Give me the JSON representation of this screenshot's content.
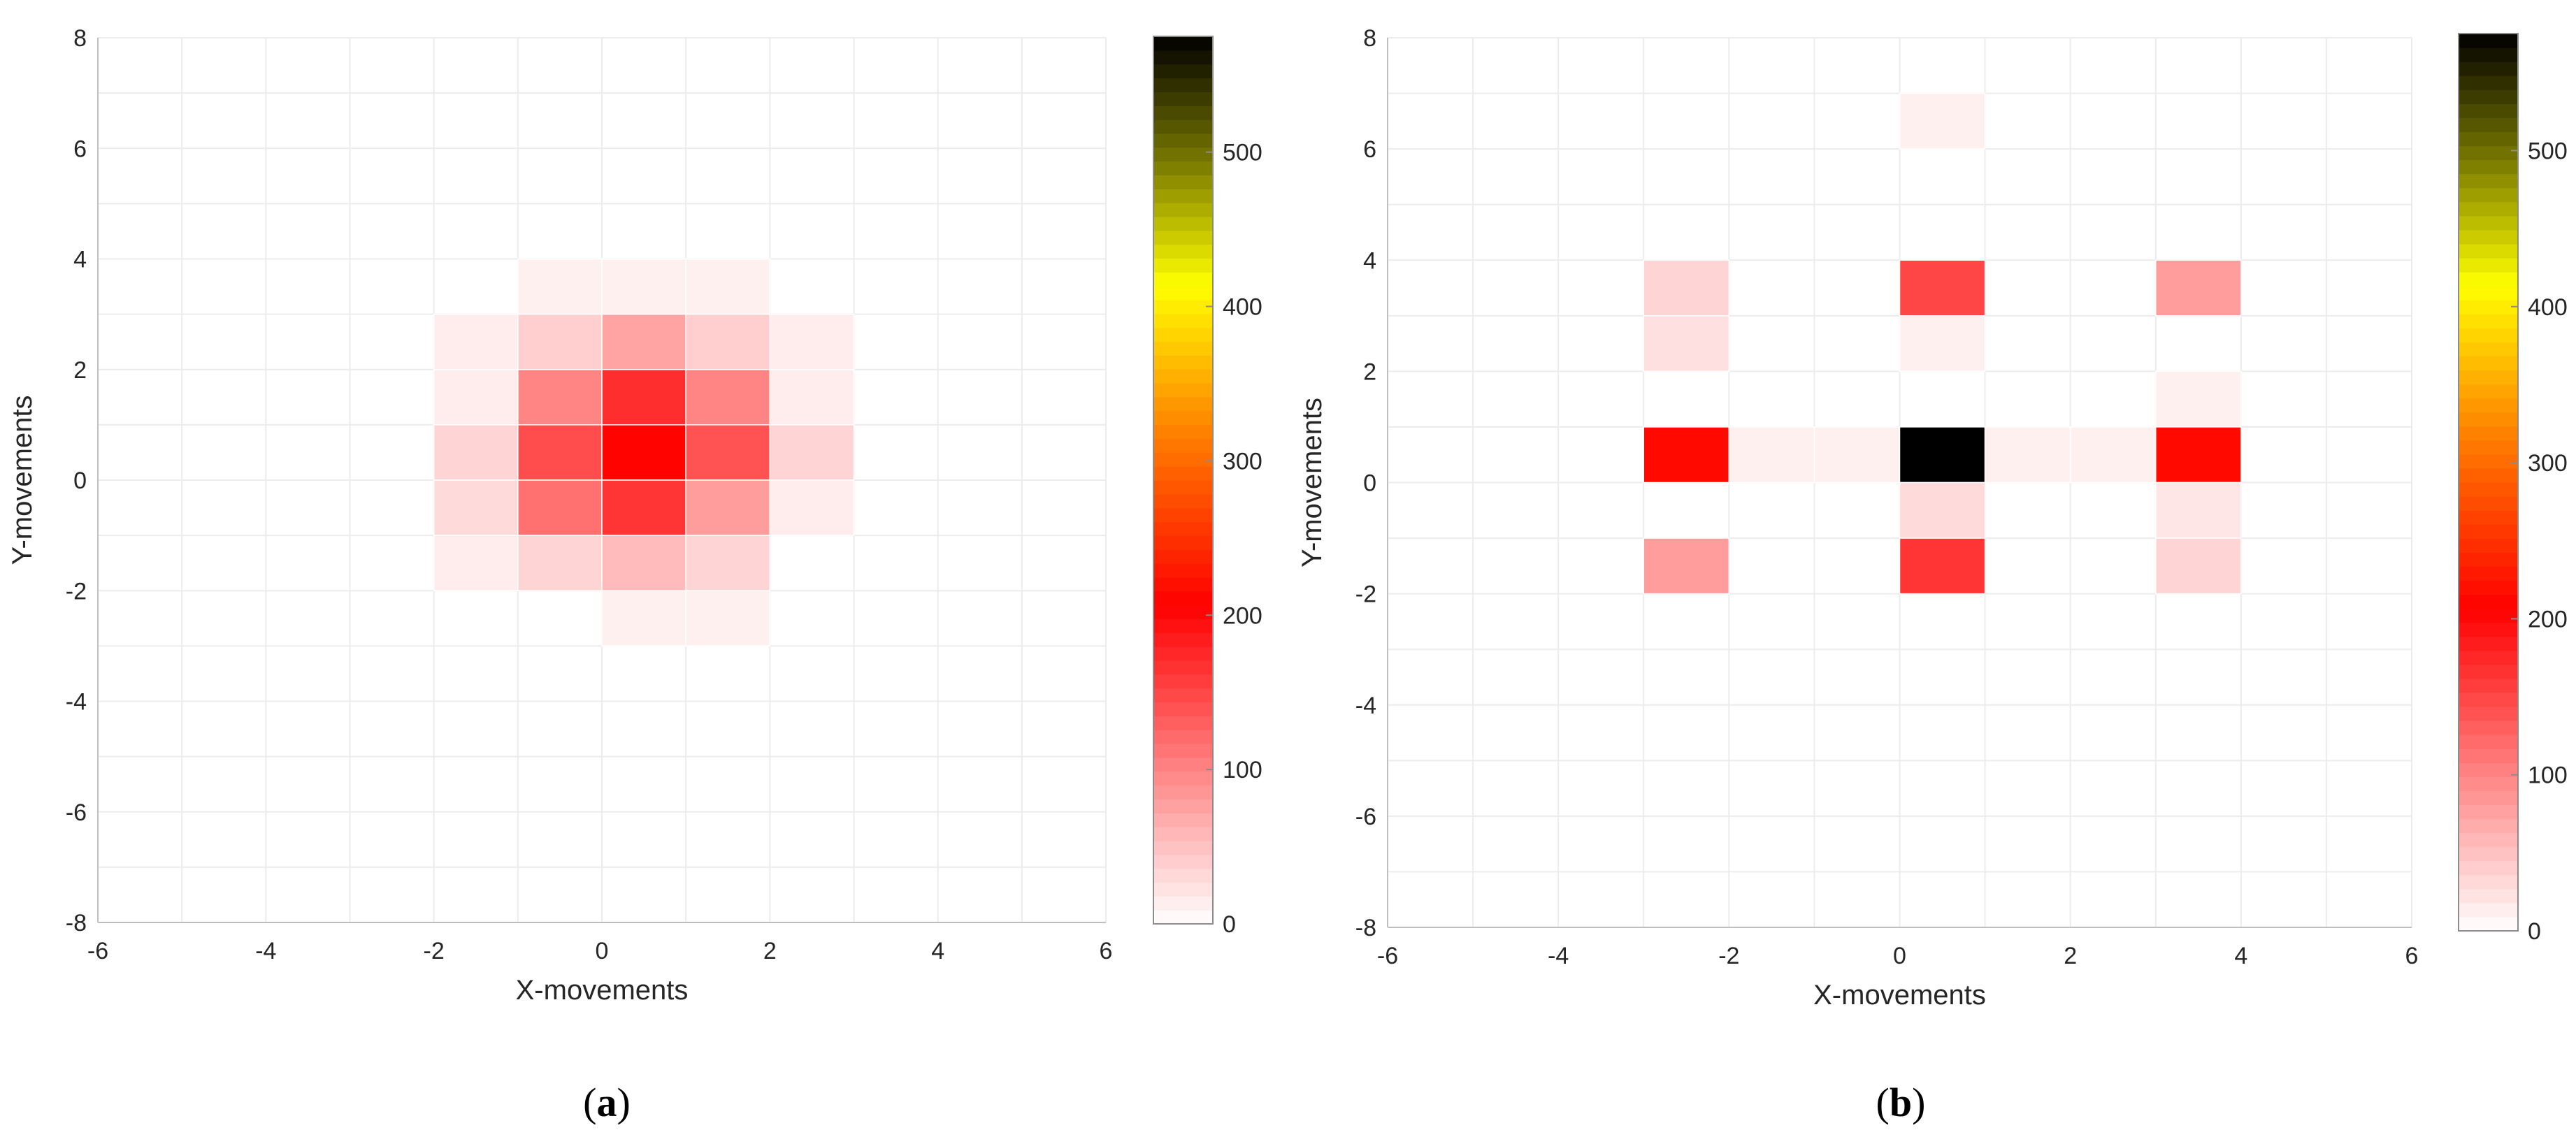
{
  "chart_data": [
    {
      "type": "heatmap",
      "panel": "(a)",
      "panel_letter": "a",
      "xlabel": "X-movements",
      "ylabel": "Y-movements",
      "xlim": [
        -6,
        6
      ],
      "ylim": [
        -8,
        8
      ],
      "xticks": [
        -6,
        -4,
        -2,
        0,
        2,
        4,
        6
      ],
      "yticks": [
        -8,
        -6,
        -4,
        -2,
        0,
        2,
        4,
        6,
        8
      ],
      "grid": true,
      "colorbar": {
        "min": 0,
        "max": 575,
        "ticks": [
          0,
          100,
          200,
          300,
          400,
          500
        ],
        "colormap": "white-red-orange-yellow-olive-black"
      },
      "cells": [
        {
          "x": -2,
          "y": 2,
          "value": 15
        },
        {
          "x": -2,
          "y": 1,
          "value": 15
        },
        {
          "x": -2,
          "y": 0,
          "value": 35
        },
        {
          "x": -2,
          "y": -1,
          "value": 30
        },
        {
          "x": -2,
          "y": -2,
          "value": 15
        },
        {
          "x": -1,
          "y": 3,
          "value": 12
        },
        {
          "x": -1,
          "y": 2,
          "value": 40
        },
        {
          "x": -1,
          "y": 1,
          "value": 100
        },
        {
          "x": -1,
          "y": 0,
          "value": 145
        },
        {
          "x": -1,
          "y": -1,
          "value": 115
        },
        {
          "x": -1,
          "y": -2,
          "value": 35
        },
        {
          "x": 0,
          "y": 3,
          "value": 12
        },
        {
          "x": 0,
          "y": 2,
          "value": 75
        },
        {
          "x": 0,
          "y": 1,
          "value": 170
        },
        {
          "x": 0,
          "y": 0,
          "value": 210
        },
        {
          "x": 0,
          "y": -1,
          "value": 165
        },
        {
          "x": 0,
          "y": -2,
          "value": 55
        },
        {
          "x": 0,
          "y": -3,
          "value": 12
        },
        {
          "x": 1,
          "y": 3,
          "value": 12
        },
        {
          "x": 1,
          "y": 2,
          "value": 40
        },
        {
          "x": 1,
          "y": 1,
          "value": 100
        },
        {
          "x": 1,
          "y": 0,
          "value": 140
        },
        {
          "x": 1,
          "y": -1,
          "value": 80
        },
        {
          "x": 1,
          "y": -2,
          "value": 35
        },
        {
          "x": 1,
          "y": -3,
          "value": 12
        },
        {
          "x": 2,
          "y": 2,
          "value": 15
        },
        {
          "x": 2,
          "y": 1,
          "value": 15
        },
        {
          "x": 2,
          "y": 0,
          "value": 35
        },
        {
          "x": 2,
          "y": -1,
          "value": 15
        }
      ]
    },
    {
      "type": "heatmap",
      "panel": "(b)",
      "panel_letter": "b",
      "xlabel": "X-movements",
      "ylabel": "Y-movements",
      "xlim": [
        -6,
        6
      ],
      "ylim": [
        -8,
        8
      ],
      "xticks": [
        -6,
        -4,
        -2,
        0,
        2,
        4,
        6
      ],
      "yticks": [
        -8,
        -6,
        -4,
        -2,
        0,
        2,
        4,
        6,
        8
      ],
      "grid": true,
      "colorbar": {
        "min": 0,
        "max": 575,
        "ticks": [
          0,
          100,
          200,
          300,
          400,
          500
        ],
        "colormap": "white-red-orange-yellow-olive-black"
      },
      "cells": [
        {
          "x": 0,
          "y": 6,
          "value": 12
        },
        {
          "x": -3,
          "y": 3,
          "value": 35
        },
        {
          "x": 0,
          "y": 3,
          "value": 150
        },
        {
          "x": 3,
          "y": 3,
          "value": 80
        },
        {
          "x": -3,
          "y": 2,
          "value": 25
        },
        {
          "x": 0,
          "y": 2,
          "value": 12
        },
        {
          "x": 3,
          "y": 1,
          "value": 12
        },
        {
          "x": -3,
          "y": 0,
          "value": 215
        },
        {
          "x": -2,
          "y": 0,
          "value": 12
        },
        {
          "x": -1,
          "y": 0,
          "value": 12
        },
        {
          "x": 0,
          "y": 0,
          "value": 575
        },
        {
          "x": 1,
          "y": 0,
          "value": 12
        },
        {
          "x": 2,
          "y": 0,
          "value": 12
        },
        {
          "x": 3,
          "y": 0,
          "value": 215
        },
        {
          "x": 0,
          "y": -1,
          "value": 30
        },
        {
          "x": 3,
          "y": -1,
          "value": 20
        },
        {
          "x": -3,
          "y": -2,
          "value": 80
        },
        {
          "x": 0,
          "y": -2,
          "value": 165
        },
        {
          "x": 3,
          "y": -2,
          "value": 35
        }
      ]
    }
  ]
}
